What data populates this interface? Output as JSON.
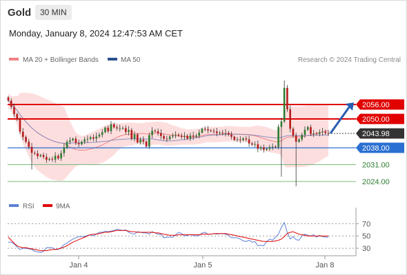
{
  "header": {
    "symbol": "Gold",
    "timeframe": "30 MIN",
    "datetime": "Monday, January 8, 2024 12:47:53 AM CET"
  },
  "legend": {
    "ma20": "MA 20 + Bollinger Bands",
    "ma50": "MA 50",
    "credit": "Research © 2024 Trading Central"
  },
  "colors": {
    "resistance": "#e00000",
    "pivot": "#2a6fd1",
    "support": "#7cb87c",
    "candle_up": "#2e7d32",
    "candle_down": "#b71c1c",
    "bollinger": "#fcd3d3",
    "ma20": "#f08080",
    "ma50": "#8a8fbf",
    "forecast": "#2a5db0",
    "current": "#333333",
    "rsi": "#5b7fd6",
    "rsi_ma": "#e00000"
  },
  "chart_data": [
    {
      "type": "candlestick",
      "title": "Gold",
      "timeframe": "30 MIN",
      "x_ticks": [
        "Jan 4",
        "Jan 5",
        "Jan 8"
      ],
      "ylim": [
        2018,
        2068
      ],
      "current_price": "2043.98",
      "levels": [
        {
          "label": "2056.00",
          "value": 2056.0,
          "kind": "resistance"
        },
        {
          "label": "2050.00",
          "value": 2050.0,
          "kind": "resistance"
        },
        {
          "label": "2038.00",
          "value": 2038.0,
          "kind": "pivot"
        },
        {
          "label": "2031.00",
          "value": 2031.0,
          "kind": "support"
        },
        {
          "label": "2024.00",
          "value": 2024.0,
          "kind": "support"
        }
      ],
      "forecast": {
        "from": 2044.0,
        "to": 2056.0,
        "direction": "up"
      },
      "close": [
        2057.6,
        2055,
        2052,
        2049.7,
        2044.7,
        2042.5,
        2040.5,
        2038.4,
        2035.9,
        2035.7,
        2034.5,
        2035,
        2034.2,
        2033,
        2033.4,
        2033.1,
        2034.7,
        2033.6,
        2035.8,
        2038.2,
        2040.5,
        2041.1,
        2041.8,
        2040,
        2039.5,
        2040.5,
        2041.5,
        2041.7,
        2042.4,
        2041.8,
        2042.7,
        2043.4,
        2044.5,
        2046.4,
        2044.9,
        2047.8,
        2046.5,
        2046.1,
        2046.1,
        2046.2,
        2044.6,
        2045.4,
        2041.8,
        2043.6,
        2040.2,
        2041.4,
        2040.6,
        2038.5,
        2043.3,
        2045.1,
        2044.9,
        2044.1,
        2042.9,
        2041.8,
        2041.6,
        2042.7,
        2043.2,
        2043.5,
        2043.1,
        2042.6,
        2043,
        2041.9,
        2043.1,
        2042.7,
        2043.1,
        2044.3,
        2045.9,
        2045.7,
        2045.2,
        2045,
        2044.8,
        2044.1,
        2044.3,
        2044.2,
        2044.2,
        2043.5,
        2042.6,
        2041.3,
        2041.5,
        2041.2,
        2041.9,
        2041.5,
        2039.8,
        2039.3,
        2039.5,
        2037.6,
        2038.1,
        2037.2,
        2037.6,
        2038.3,
        2038.5,
        2038.3,
        2046.7,
        2049,
        2062.9,
        2054,
        2045.9,
        2043,
        2040.5,
        2041.5,
        2043.4,
        2045.5,
        2046.6,
        2043.8,
        2044,
        2043.8,
        2044.5,
        2044.7,
        2044.1,
        2043.98
      ],
      "rsi": {
        "ylim": [
          20,
          85
        ],
        "ticks": [
          "70",
          "50",
          "30"
        ],
        "values": [
          40,
          40,
          37,
          32,
          28,
          30,
          30,
          29,
          28,
          25,
          24,
          23,
          25,
          31,
          31,
          31,
          28,
          28,
          31,
          36,
          38,
          42,
          45,
          47,
          49,
          49,
          49,
          51,
          52,
          50,
          53,
          56,
          56,
          58,
          57,
          58,
          59,
          61,
          60,
          59,
          60,
          56,
          54,
          53,
          57,
          56,
          55,
          55,
          53,
          57,
          55,
          53,
          53,
          47,
          48,
          48,
          48,
          52,
          56,
          54,
          50,
          51,
          52,
          51,
          50,
          51,
          55,
          56,
          53,
          53,
          54,
          53,
          54,
          54,
          53,
          51,
          47,
          47,
          47,
          45,
          42,
          41,
          43,
          40,
          41,
          34,
          35,
          34,
          41,
          45,
          43,
          48,
          53,
          64,
          72,
          56,
          45,
          49,
          44,
          43,
          50,
          53,
          51,
          50,
          52,
          48,
          51,
          49,
          48,
          48
        ],
        "ma": [
          48,
          43,
          38,
          34,
          32,
          31,
          31,
          30,
          29,
          28,
          27,
          26,
          26,
          26,
          27,
          28,
          28,
          29,
          30,
          32,
          34,
          37,
          40,
          42,
          44,
          46,
          48,
          50,
          52,
          53,
          53,
          54,
          55,
          56,
          56,
          57,
          58,
          59,
          59,
          59,
          59,
          58,
          57,
          57,
          56,
          56,
          56,
          56,
          56,
          56,
          55,
          55,
          54,
          53,
          52,
          51,
          51,
          51,
          52,
          52,
          52,
          52,
          52,
          52,
          52,
          52,
          53,
          53,
          53,
          53,
          54,
          54,
          54,
          54,
          54,
          53,
          52,
          51,
          50,
          49,
          48,
          47,
          46,
          45,
          44,
          43,
          42,
          41,
          41,
          41,
          41,
          42,
          43,
          45,
          49,
          54,
          56,
          57,
          55,
          53,
          52,
          51,
          50,
          50,
          50,
          50,
          50,
          50,
          50,
          50
        ]
      }
    }
  ]
}
